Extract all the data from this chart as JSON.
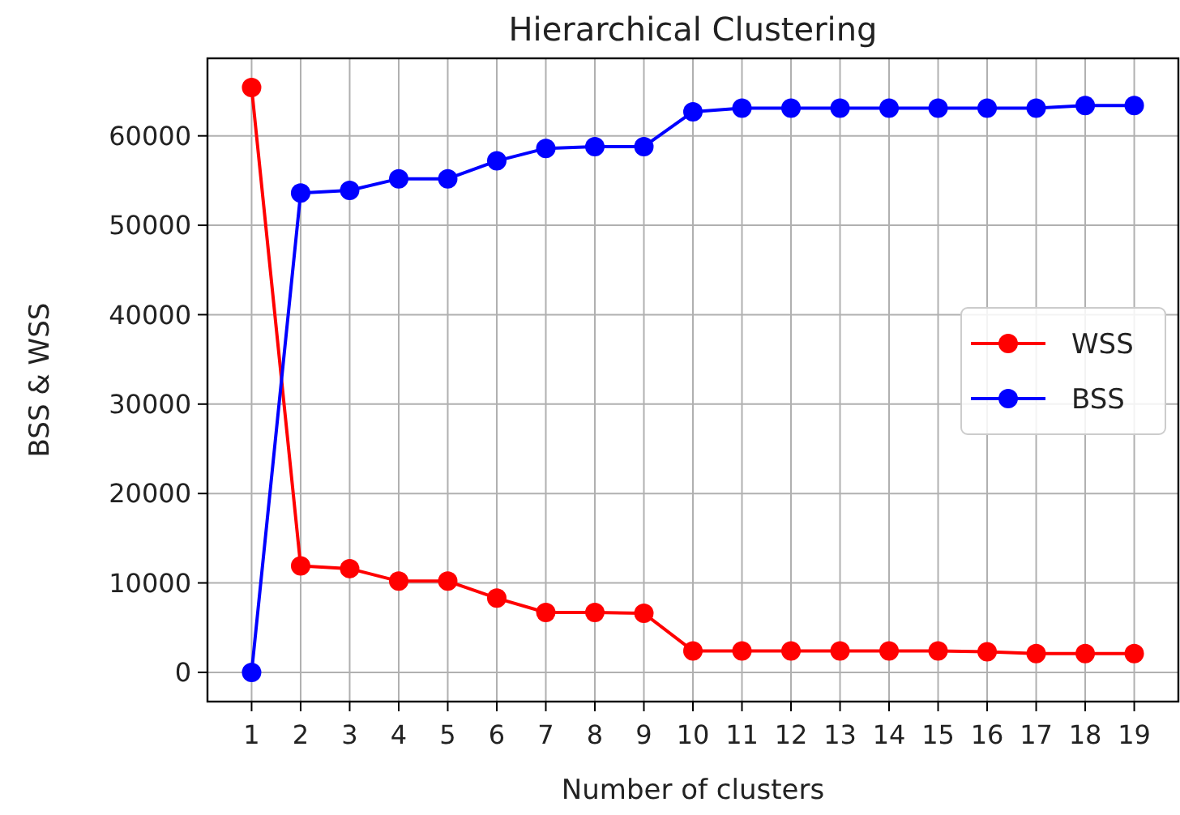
{
  "chart_data": {
    "type": "line",
    "title": "Hierarchical Clustering",
    "xlabel": "Number of clusters",
    "ylabel": "BSS & WSS",
    "x": [
      1,
      2,
      3,
      4,
      5,
      6,
      7,
      8,
      9,
      10,
      11,
      12,
      13,
      14,
      15,
      16,
      17,
      18,
      19
    ],
    "series": [
      {
        "name": "WSS",
        "color": "#ff0000",
        "values": [
          65400,
          11900,
          11600,
          10200,
          10200,
          8300,
          6700,
          6700,
          6600,
          2400,
          2400,
          2400,
          2400,
          2400,
          2400,
          2300,
          2100,
          2100,
          2100
        ]
      },
      {
        "name": "BSS",
        "color": "#0000ff",
        "values": [
          0,
          53600,
          53900,
          55200,
          55200,
          57200,
          58600,
          58800,
          58800,
          62700,
          63100,
          63100,
          63100,
          63100,
          63100,
          63100,
          63100,
          63400,
          63400
        ]
      }
    ],
    "xlim": [
      0.1,
      19.9
    ],
    "xticks": [
      1,
      2,
      3,
      4,
      5,
      6,
      7,
      8,
      9,
      10,
      11,
      12,
      13,
      14,
      15,
      16,
      17,
      18,
      19
    ],
    "ylim": [
      -3270,
      68670
    ],
    "yticks": [
      0,
      10000,
      20000,
      30000,
      40000,
      50000,
      60000
    ],
    "grid": true,
    "legend": "right",
    "marker": "circle",
    "line_style": "solid"
  }
}
